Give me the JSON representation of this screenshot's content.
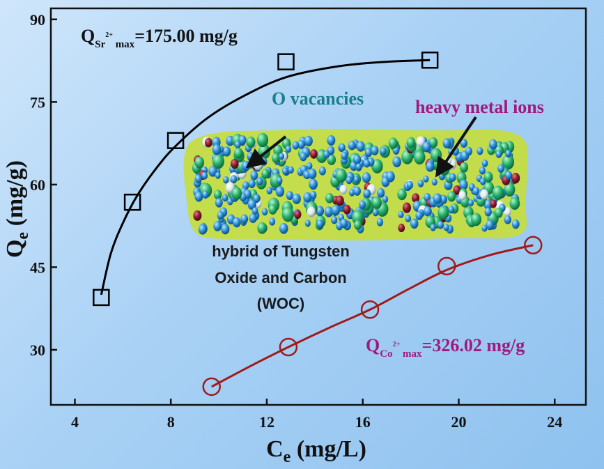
{
  "chart_data": {
    "type": "scatter",
    "xlabel_main": "C",
    "xlabel_sub": "e",
    "xlabel_unit": " (mg/L)",
    "ylabel_main": "Q",
    "ylabel_sub": "e",
    "ylabel_unit": " (mg/g)",
    "xlim": [
      3,
      25.3
    ],
    "ylim": [
      20,
      92
    ],
    "xticks": [
      4,
      8,
      12,
      16,
      20,
      24
    ],
    "yticks": [
      30,
      45,
      60,
      75,
      90
    ],
    "series": [
      {
        "marker": "square",
        "color": "#000000",
        "points": [
          {
            "x": 5.1,
            "y": 39.5
          },
          {
            "x": 6.4,
            "y": 56.8
          },
          {
            "x": 8.2,
            "y": 68.0
          },
          {
            "x": 12.8,
            "y": 82.3
          },
          {
            "x": 18.8,
            "y": 82.6
          }
        ],
        "fit": [
          {
            "x": 5.1,
            "y": 40.0
          },
          {
            "x": 5.5,
            "y": 47.5
          },
          {
            "x": 6.0,
            "y": 53.0
          },
          {
            "x": 6.6,
            "y": 58.0
          },
          {
            "x": 7.4,
            "y": 63.0
          },
          {
            "x": 8.2,
            "y": 67.0
          },
          {
            "x": 9.5,
            "y": 72.0
          },
          {
            "x": 11.0,
            "y": 76.0
          },
          {
            "x": 12.8,
            "y": 79.5
          },
          {
            "x": 15.0,
            "y": 81.5
          },
          {
            "x": 17.0,
            "y": 82.3
          },
          {
            "x": 18.8,
            "y": 82.6
          }
        ]
      },
      {
        "marker": "circle",
        "color": "#a01a1a",
        "points": [
          {
            "x": 9.7,
            "y": 23.3
          },
          {
            "x": 12.9,
            "y": 30.5
          },
          {
            "x": 16.3,
            "y": 37.3
          },
          {
            "x": 19.5,
            "y": 45.2
          },
          {
            "x": 23.1,
            "y": 49.0
          }
        ],
        "fit": [
          {
            "x": 9.7,
            "y": 23.3
          },
          {
            "x": 11.3,
            "y": 27.0
          },
          {
            "x": 12.9,
            "y": 30.5
          },
          {
            "x": 14.6,
            "y": 34.0
          },
          {
            "x": 16.3,
            "y": 37.3
          },
          {
            "x": 17.9,
            "y": 41.0
          },
          {
            "x": 19.5,
            "y": 44.5
          },
          {
            "x": 21.3,
            "y": 47.2
          },
          {
            "x": 23.1,
            "y": 49.0
          }
        ]
      }
    ]
  },
  "annotations": {
    "sr_q": "Q",
    "sr_sub": "Sr",
    "sr_sup": "2+",
    "sr_max": " max",
    "sr_value": "=175.00 mg/g",
    "co_q": "Q",
    "co_sub": "Co",
    "co_sup": "2+",
    "co_max": " max",
    "co_value": "=326.02  mg/g",
    "o_vacancies": "O vacancies",
    "heavy_metal": "heavy metal ions",
    "hybrid_line1": "hybrid of Tungsten",
    "hybrid_line2": "Oxide and Carbon",
    "hybrid_line3": "(WOC)"
  },
  "colors": {
    "sr_series": "#000000",
    "co_series": "#a01a1a",
    "teal_label": "#1a7f8c",
    "purple_label": "#a01a7d",
    "carbon_green": "#c7de3a",
    "tungsten_blue": "#2a8fd8",
    "tungsten_green": "#28b06a",
    "metal_red": "#8b1a2a",
    "vacancy_white": "#e6eef3"
  }
}
